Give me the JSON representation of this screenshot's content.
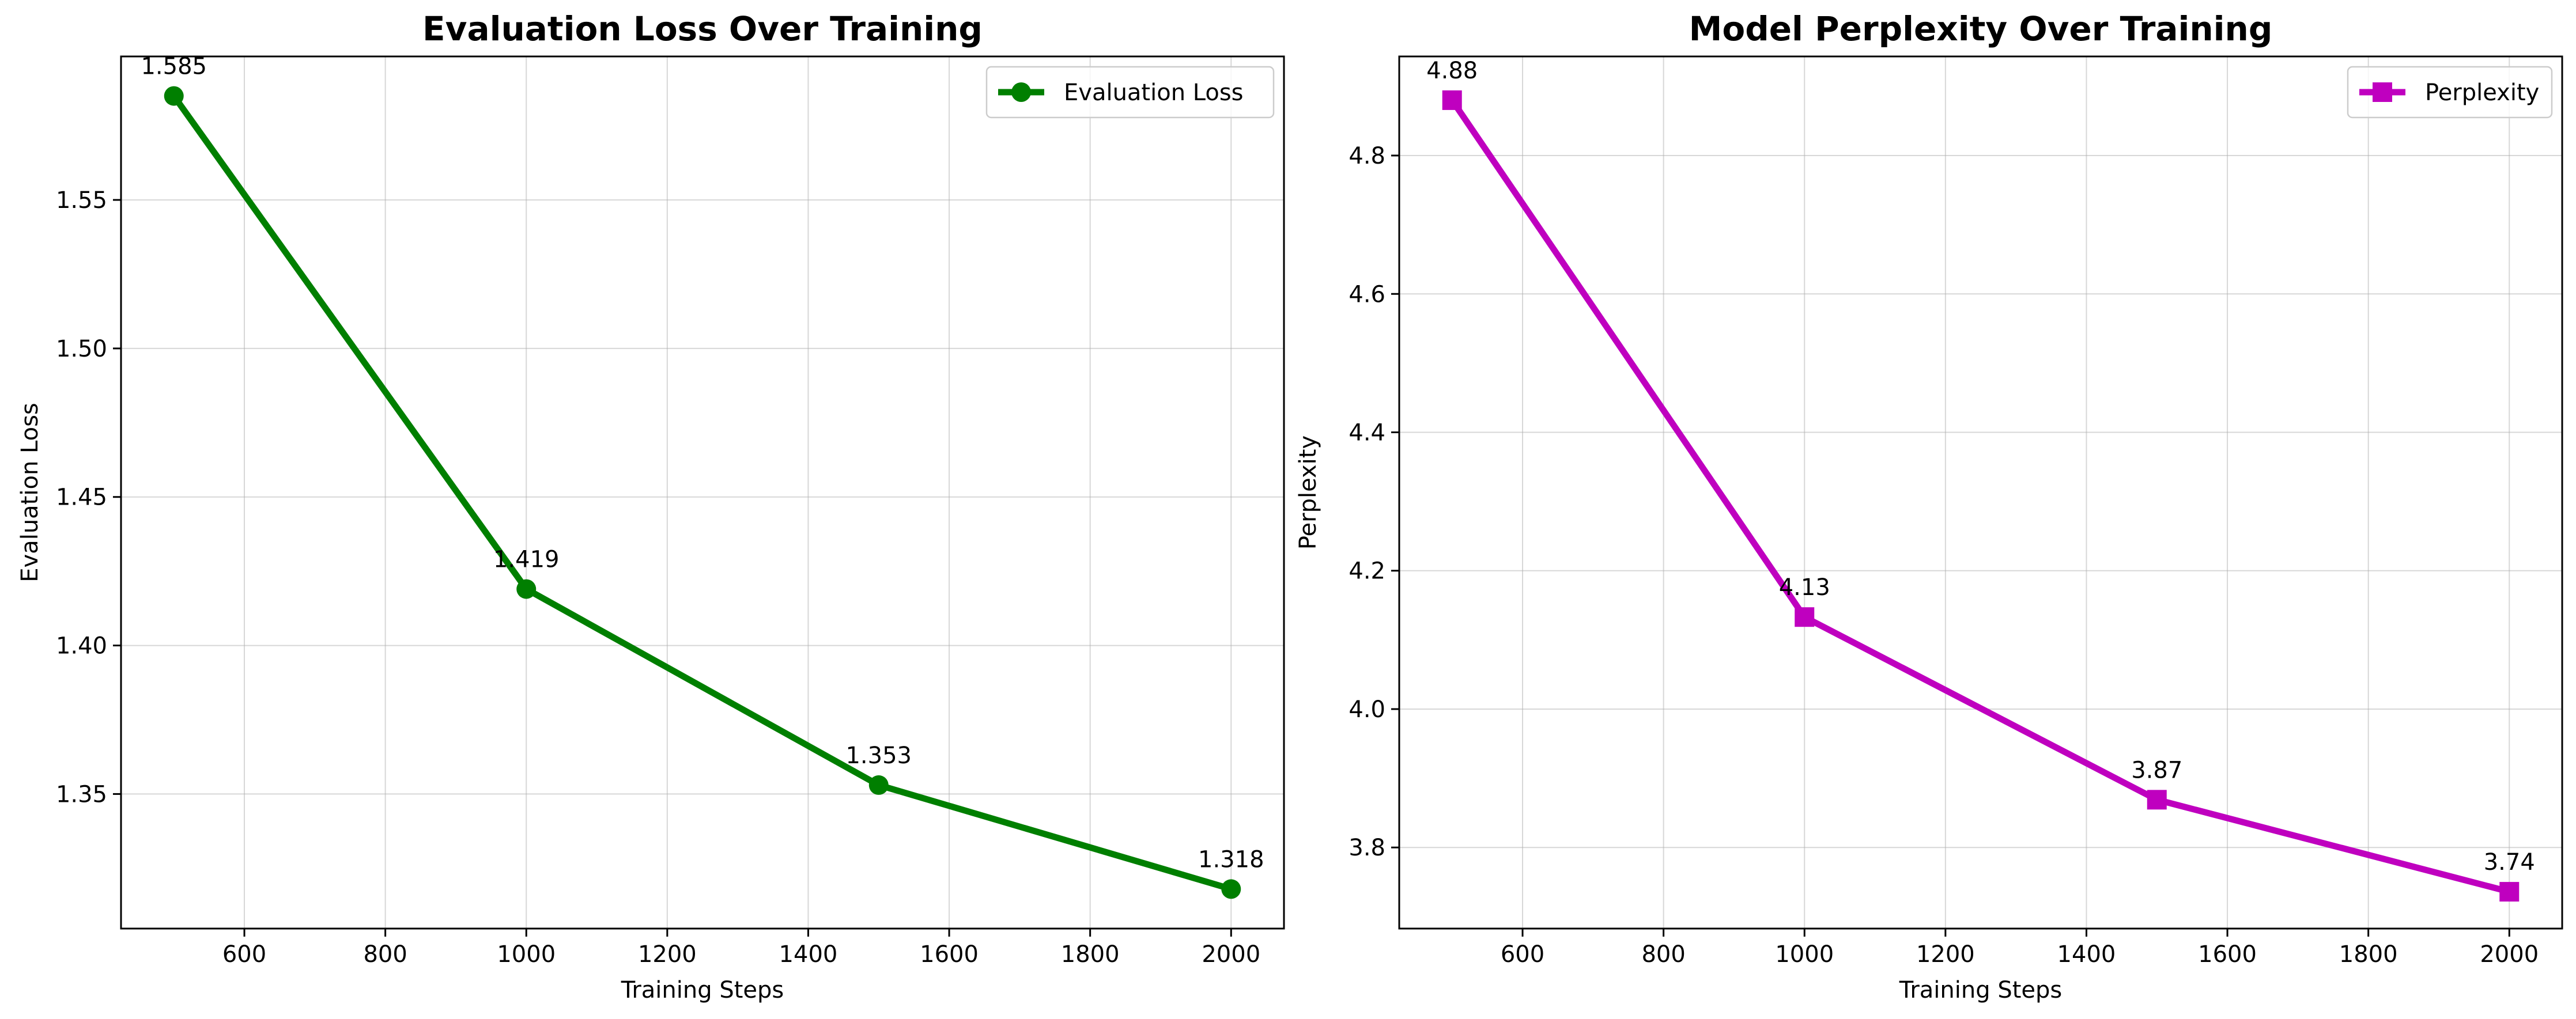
{
  "chart_data": [
    {
      "type": "line",
      "title": "Evaluation Loss Over Training",
      "xlabel": "Training Steps",
      "ylabel": "Evaluation Loss",
      "xlim": [
        425,
        2075
      ],
      "ylim": [
        1.3047,
        1.5983
      ],
      "xticks": [
        600,
        800,
        1000,
        1200,
        1400,
        1600,
        1800,
        2000
      ],
      "xtick_labels": [
        "600",
        "800",
        "1000",
        "1200",
        "1400",
        "1600",
        "1800",
        "2000"
      ],
      "yticks": [
        1.35,
        1.4,
        1.45,
        1.5,
        1.55
      ],
      "ytick_labels": [
        "1.35",
        "1.40",
        "1.45",
        "1.50",
        "1.55"
      ],
      "grid": true,
      "legend_position": "top-right",
      "marker": "circle",
      "color": "#007f00",
      "series": [
        {
          "name": "Evaluation Loss",
          "x": [
            500,
            1000,
            1500,
            2000
          ],
          "y": [
            1.585,
            1.419,
            1.353,
            1.318
          ],
          "labels": [
            "1.585",
            "1.419",
            "1.353",
            "1.318"
          ]
        }
      ]
    },
    {
      "type": "line",
      "title": "Model Perplexity Over Training",
      "xlabel": "Training Steps",
      "ylabel": "Perplexity",
      "xlim": [
        425,
        2075
      ],
      "ylim": [
        3.6828,
        4.9432
      ],
      "xticks": [
        600,
        800,
        1000,
        1200,
        1400,
        1600,
        1800,
        2000
      ],
      "xtick_labels": [
        "600",
        "800",
        "1000",
        "1200",
        "1400",
        "1600",
        "1800",
        "2000"
      ],
      "yticks": [
        3.8,
        4.0,
        4.2,
        4.4,
        4.6,
        4.8
      ],
      "ytick_labels": [
        "3.8",
        "4.0",
        "4.2",
        "4.4",
        "4.6",
        "4.8"
      ],
      "grid": true,
      "legend_position": "top-right",
      "marker": "square",
      "color": "#bf00bf",
      "series": [
        {
          "name": "Perplexity",
          "x": [
            500,
            1000,
            1500,
            2000
          ],
          "y": [
            4.88,
            4.133,
            3.869,
            3.736
          ],
          "labels": [
            "4.88",
            "4.13",
            "3.87",
            "3.74"
          ]
        }
      ]
    }
  ]
}
